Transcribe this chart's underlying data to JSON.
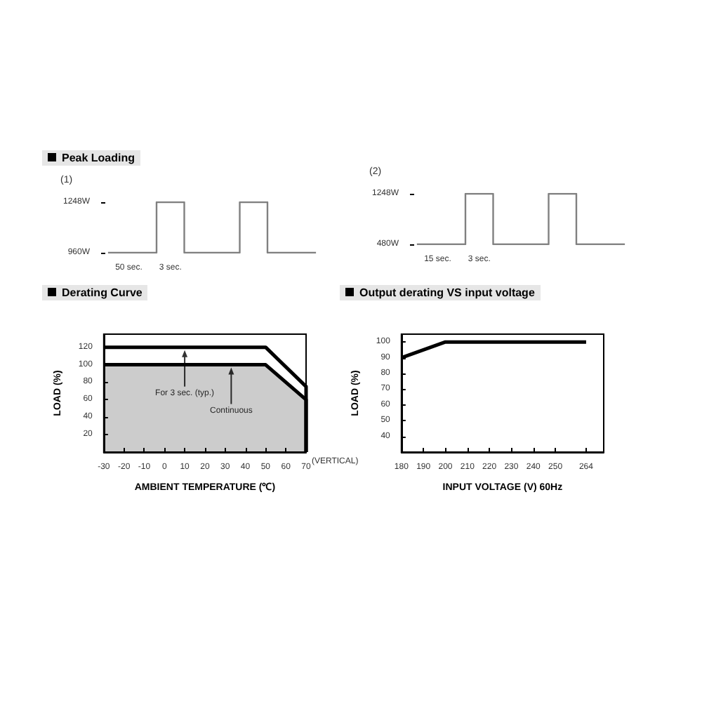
{
  "chart_data": [
    {
      "type": "step",
      "title": "Peak Loading",
      "subtitle": "(1)",
      "categories": [
        null,
        null,
        null,
        null,
        null,
        null,
        null,
        null,
        null,
        null,
        null,
        null,
        null,
        null,
        null,
        null
      ],
      "series": [
        {
          "color": "#808080",
          "values": [
            960,
            960,
            960,
            960,
            1248,
            1248,
            960,
            960,
            960,
            960,
            1248,
            1248,
            960,
            960,
            960,
            960
          ]
        }
      ],
      "ylim": [
        960,
        1248
      ],
      "yticks": [
        {
          "value": 960,
          "label": "960W"
        },
        {
          "value": 1248,
          "label": "1248W"
        }
      ],
      "tick_labels": "y",
      "grid": false,
      "marker": "none",
      "annotations": [
        "50 sec.",
        "3 sec."
      ]
    },
    {
      "type": "step",
      "subtitle": "(2)",
      "categories": [
        null,
        null,
        null,
        null,
        null,
        null,
        null,
        null,
        null,
        null,
        null,
        null,
        null,
        null,
        null,
        null
      ],
      "series": [
        {
          "color": "#808080",
          "values": [
            480,
            480,
            480,
            480,
            1248,
            1248,
            480,
            480,
            480,
            480,
            1248,
            1248,
            480,
            480,
            480,
            480
          ]
        }
      ],
      "ylim": [
        480,
        1248
      ],
      "yticks": [
        {
          "value": 480,
          "label": "480W"
        },
        {
          "value": 1248,
          "label": "1248W"
        }
      ],
      "tick_labels": "y",
      "grid": false,
      "marker": "none",
      "annotations": [
        "15 sec.",
        "3 sec."
      ]
    },
    {
      "type": "line",
      "title": "Derating Curve",
      "xlabel": "AMBIENT TEMPERATURE (℃)",
      "ylabel": "LOAD (%)",
      "series": [
        {
          "color": "#000000",
          "x": [
            -30,
            50,
            70,
            70
          ],
          "values": [
            120,
            120,
            75,
            0
          ]
        },
        {
          "type": "area",
          "color": "#000000",
          "x": [
            -30,
            50,
            70,
            70
          ],
          "values": [
            100,
            100,
            60,
            0
          ]
        }
      ],
      "xlim": [
        -30,
        70
      ],
      "xticks": [
        -30,
        -20,
        -10,
        0,
        10,
        20,
        30,
        40,
        50,
        60,
        70
      ],
      "ylim": [
        0,
        135
      ],
      "yticks": [
        20,
        40,
        60,
        80,
        100,
        120
      ],
      "grid": false,
      "marker": "none",
      "annotations": [
        {
          "text": "For 3 sec. (typ.)",
          "x": 10,
          "y": 120
        },
        {
          "text": "Continuous",
          "x": 33,
          "y": 100
        },
        "(VERTICAL)"
      ]
    },
    {
      "type": "line",
      "title": "Output derating VS input voltage",
      "xlabel": "INPUT VOLTAGE (V) 60Hz",
      "ylabel": "LOAD (%)",
      "series": [
        {
          "color": "#000000",
          "x": [
            180,
            200,
            264
          ],
          "values": [
            90,
            100,
            100
          ]
        }
      ],
      "xlim": [
        180,
        272
      ],
      "xticks": [
        180,
        190,
        200,
        210,
        220,
        230,
        240,
        250,
        264
      ],
      "ylim": [
        30,
        105
      ],
      "yticks": [
        40,
        50,
        60,
        70,
        80,
        90,
        100
      ],
      "grid": false,
      "marker": "none"
    }
  ]
}
